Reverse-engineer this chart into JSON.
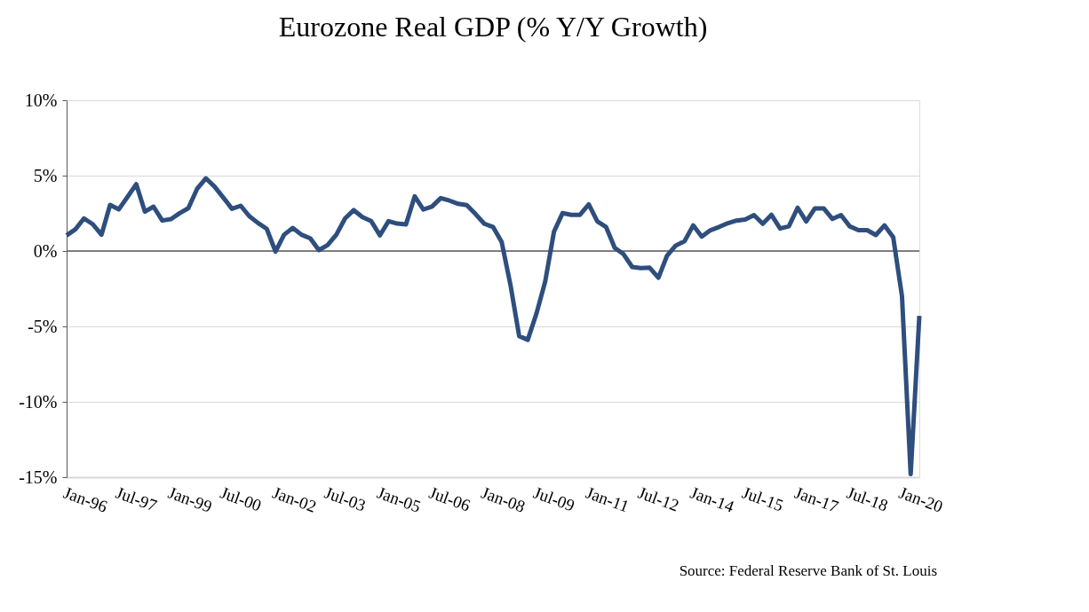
{
  "chart_data": {
    "type": "line",
    "title": "Eurozone Real GDP (% Y/Y Growth)",
    "annotations": [
      "Source: Federal Reserve Bank of St. Louis"
    ],
    "x": [
      "1996-01",
      "1996-04",
      "1996-07",
      "1996-10",
      "1997-01",
      "1997-04",
      "1997-07",
      "1997-10",
      "1998-01",
      "1998-04",
      "1998-07",
      "1998-10",
      "1999-01",
      "1999-04",
      "1999-07",
      "1999-10",
      "2000-01",
      "2000-04",
      "2000-07",
      "2000-10",
      "2001-01",
      "2001-04",
      "2001-07",
      "2001-10",
      "2002-01",
      "2002-04",
      "2002-07",
      "2002-10",
      "2003-01",
      "2003-04",
      "2003-07",
      "2003-10",
      "2004-01",
      "2004-04",
      "2004-07",
      "2004-10",
      "2005-01",
      "2005-04",
      "2005-07",
      "2005-10",
      "2006-01",
      "2006-04",
      "2006-07",
      "2006-10",
      "2007-01",
      "2007-04",
      "2007-07",
      "2007-10",
      "2008-01",
      "2008-04",
      "2008-07",
      "2008-10",
      "2009-01",
      "2009-04",
      "2009-07",
      "2009-10",
      "2010-01",
      "2010-04",
      "2010-07",
      "2010-10",
      "2011-01",
      "2011-04",
      "2011-07",
      "2011-10",
      "2012-01",
      "2012-04",
      "2012-07",
      "2012-10",
      "2013-01",
      "2013-04",
      "2013-07",
      "2013-10",
      "2014-01",
      "2014-04",
      "2014-07",
      "2014-10",
      "2015-01",
      "2015-04",
      "2015-07",
      "2015-10",
      "2016-01",
      "2016-04",
      "2016-07",
      "2016-10",
      "2017-01",
      "2017-04",
      "2017-07",
      "2017-10",
      "2018-01",
      "2018-04",
      "2018-07",
      "2018-10",
      "2019-01",
      "2019-04",
      "2019-07",
      "2019-10",
      "2020-01",
      "2020-04",
      "2020-07"
    ],
    "series": [
      {
        "color": "#2e4e7e",
        "values": [
          1.04,
          1.43,
          2.16,
          1.78,
          1.08,
          3.06,
          2.76,
          3.59,
          4.43,
          2.61,
          2.94,
          2.02,
          2.12,
          2.51,
          2.84,
          4.12,
          4.82,
          4.27,
          3.55,
          2.8,
          3.0,
          2.31,
          1.86,
          1.47,
          -0.04,
          1.08,
          1.53,
          1.08,
          0.84,
          0.06,
          0.39,
          1.08,
          2.16,
          2.71,
          2.25,
          1.98,
          1.04,
          1.98,
          1.82,
          1.76,
          3.63,
          2.75,
          2.95,
          3.51,
          3.34,
          3.13,
          3.04,
          2.45,
          1.81,
          1.6,
          0.6,
          -2.23,
          -5.64,
          -5.89,
          -4.15,
          -2.02,
          1.28,
          2.51,
          2.4,
          2.4,
          3.09,
          1.96,
          1.6,
          0.21,
          -0.21,
          -1.06,
          -1.13,
          -1.11,
          -1.77,
          -0.32,
          0.36,
          0.64,
          1.7,
          0.96,
          1.38,
          1.6,
          1.85,
          2.02,
          2.09,
          2.38,
          1.81,
          2.4,
          1.49,
          1.64,
          2.87,
          1.96,
          2.83,
          2.83,
          2.13,
          2.38,
          1.64,
          1.38,
          1.38,
          1.06,
          1.7,
          0.91,
          -3.0,
          -14.8,
          -4.3
        ]
      }
    ],
    "xlim": [
      "1996-01",
      "2020-07"
    ],
    "xticks": [
      {
        "value": "1996-01",
        "label": "Jan-96"
      },
      {
        "value": "1997-07",
        "label": "Jul-97"
      },
      {
        "value": "1999-01",
        "label": "Jan-99"
      },
      {
        "value": "2000-07",
        "label": "Jul-00"
      },
      {
        "value": "2002-01",
        "label": "Jan-02"
      },
      {
        "value": "2003-07",
        "label": "Jul-03"
      },
      {
        "value": "2005-01",
        "label": "Jan-05"
      },
      {
        "value": "2006-07",
        "label": "Jul-06"
      },
      {
        "value": "2008-01",
        "label": "Jan-08"
      },
      {
        "value": "2009-07",
        "label": "Jul-09"
      },
      {
        "value": "2011-01",
        "label": "Jan-11"
      },
      {
        "value": "2012-07",
        "label": "Jul-12"
      },
      {
        "value": "2014-01",
        "label": "Jan-14"
      },
      {
        "value": "2015-07",
        "label": "Jul-15"
      },
      {
        "value": "2017-01",
        "label": "Jan-17"
      },
      {
        "value": "2018-07",
        "label": "Jul-18"
      },
      {
        "value": "2020-01",
        "label": "Jan-20"
      }
    ],
    "ylim": [
      -15,
      10
    ],
    "yticks": [
      {
        "value": -15,
        "label": "-15%"
      },
      {
        "value": -10,
        "label": "-10%"
      },
      {
        "value": -5,
        "label": "-5%"
      },
      {
        "value": 0,
        "label": "0%"
      },
      {
        "value": 5,
        "label": "5%"
      },
      {
        "value": 10,
        "label": "10%"
      }
    ],
    "ref_lines": [
      {
        "axis": "y",
        "value": 0,
        "color": "#595959"
      }
    ],
    "grid": "y",
    "marker": "none",
    "line_style": "solid"
  }
}
